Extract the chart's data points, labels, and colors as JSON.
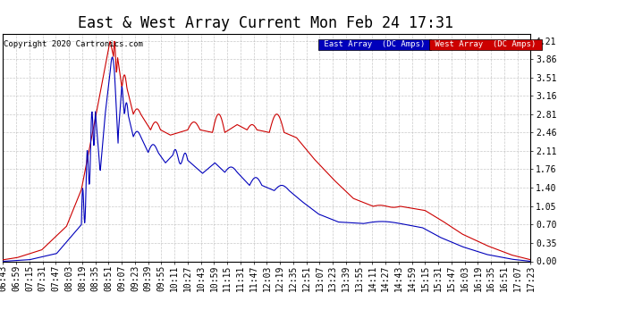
{
  "title": "East & West Array Current Mon Feb 24 17:31",
  "copyright": "Copyright 2020 Cartronics.com",
  "legend_east": "East Array  (DC Amps)",
  "legend_west": "West Array  (DC Amps)",
  "east_color": "#0000bb",
  "west_color": "#cc0000",
  "legend_east_bg": "#0000bb",
  "legend_west_bg": "#cc0000",
  "background_color": "#ffffff",
  "plot_bg_color": "#ffffff",
  "grid_color": "#bbbbbb",
  "yticks": [
    0.0,
    0.35,
    0.7,
    1.05,
    1.4,
    1.76,
    2.11,
    2.46,
    2.81,
    3.16,
    3.51,
    3.86,
    4.21
  ],
  "ylim": [
    0.0,
    4.35
  ],
  "title_fontsize": 12,
  "tick_fontsize": 7,
  "copyright_fontsize": 6.5
}
